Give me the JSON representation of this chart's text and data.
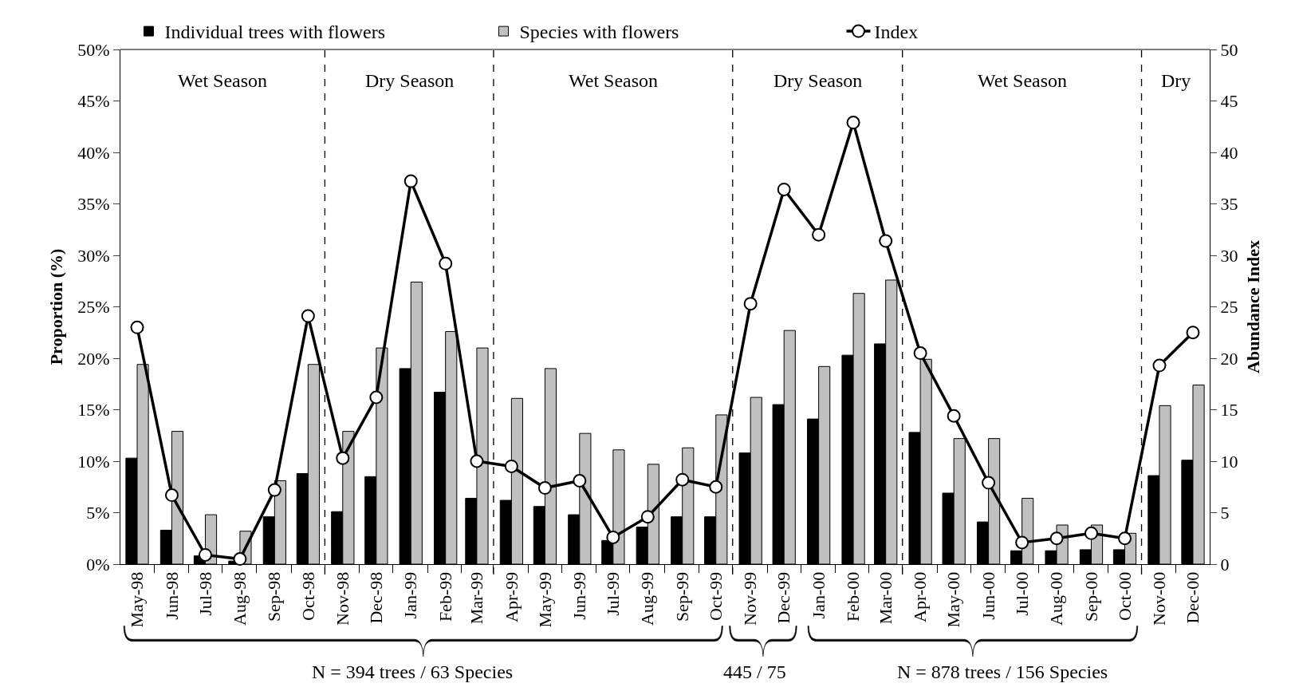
{
  "chart_data": {
    "type": "bar",
    "ylabel": "Proportion (%)",
    "y2label": "Abundance Index",
    "x": [
      "1998-05",
      "1998-06",
      "1998-07",
      "1998-08",
      "1998-09",
      "1998-10",
      "1998-11",
      "1998-12",
      "1999-01",
      "1999-02",
      "1999-03",
      "1999-04",
      "1999-05",
      "1999-06",
      "1999-07",
      "1999-08",
      "1999-09",
      "1999-10",
      "1999-11",
      "1999-12",
      "2000-01",
      "2000-02",
      "2000-03",
      "2000-04",
      "2000-05",
      "2000-06",
      "2000-07",
      "2000-08",
      "2000-09",
      "2000-10",
      "2000-11",
      "2000-12"
    ],
    "xlim": [
      "1998-04-16",
      "2000-12-16"
    ],
    "xticks": [
      {
        "value": "1998-05",
        "label": "May-98"
      },
      {
        "value": "1998-06",
        "label": "Jun-98"
      },
      {
        "value": "1998-07",
        "label": "Jul-98"
      },
      {
        "value": "1998-08",
        "label": "Aug-98"
      },
      {
        "value": "1998-09",
        "label": "Sep-98"
      },
      {
        "value": "1998-10",
        "label": "Oct-98"
      },
      {
        "value": "1998-11",
        "label": "Nov-98"
      },
      {
        "value": "1998-12",
        "label": "Dec-98"
      },
      {
        "value": "1999-01",
        "label": "Jan-99"
      },
      {
        "value": "1999-02",
        "label": "Feb-99"
      },
      {
        "value": "1999-03",
        "label": "Mar-99"
      },
      {
        "value": "1999-04",
        "label": "Apr-99"
      },
      {
        "value": "1999-05",
        "label": "May-99"
      },
      {
        "value": "1999-06",
        "label": "Jun-99"
      },
      {
        "value": "1999-07",
        "label": "Jul-99"
      },
      {
        "value": "1999-08",
        "label": "Aug-99"
      },
      {
        "value": "1999-09",
        "label": "Sep-99"
      },
      {
        "value": "1999-10",
        "label": "Oct-99"
      },
      {
        "value": "1999-11",
        "label": "Nov-99"
      },
      {
        "value": "1999-12",
        "label": "Dec-99"
      },
      {
        "value": "2000-01",
        "label": "Jan-00"
      },
      {
        "value": "2000-02",
        "label": "Feb-00"
      },
      {
        "value": "2000-03",
        "label": "Mar-00"
      },
      {
        "value": "2000-04",
        "label": "Apr-00"
      },
      {
        "value": "2000-05",
        "label": "May-00"
      },
      {
        "value": "2000-06",
        "label": "Jun-00"
      },
      {
        "value": "2000-07",
        "label": "Jul-00"
      },
      {
        "value": "2000-08",
        "label": "Aug-00"
      },
      {
        "value": "2000-09",
        "label": "Sep-00"
      },
      {
        "value": "2000-10",
        "label": "Oct-00"
      },
      {
        "value": "2000-11",
        "label": "Nov-00"
      },
      {
        "value": "2000-12",
        "label": "Dec-00"
      },
      {
        "value": "1998-05-16",
        "label": null
      },
      {
        "value": "1998-06-16",
        "label": null
      },
      {
        "value": "1998-07-16",
        "label": null
      },
      {
        "value": "1998-08-16",
        "label": null
      },
      {
        "value": "1998-09-16",
        "label": null
      },
      {
        "value": "1998-10-16",
        "label": null
      },
      {
        "value": "1998-11-16",
        "label": null
      },
      {
        "value": "1998-12-16",
        "label": null
      },
      {
        "value": "1999-01-16",
        "label": null
      },
      {
        "value": "1999-02-15",
        "label": null
      },
      {
        "value": "1999-03-16",
        "label": null
      },
      {
        "value": "1999-04-16",
        "label": null
      },
      {
        "value": "1999-05-16",
        "label": null
      },
      {
        "value": "1999-06-16",
        "label": null
      },
      {
        "value": "1999-07-16",
        "label": null
      },
      {
        "value": "1999-08-16",
        "label": null
      },
      {
        "value": "1999-09-16",
        "label": null
      },
      {
        "value": "1999-10-16",
        "label": null
      },
      {
        "value": "1999-11-16",
        "label": null
      },
      {
        "value": "1999-12-16",
        "label": null
      },
      {
        "value": "2000-01-16",
        "label": null
      },
      {
        "value": "2000-02-15",
        "label": null
      },
      {
        "value": "2000-03-16",
        "label": null
      },
      {
        "value": "2000-04-16",
        "label": null
      },
      {
        "value": "2000-05-16",
        "label": null
      },
      {
        "value": "2000-06-16",
        "label": null
      },
      {
        "value": "2000-07-16",
        "label": null
      },
      {
        "value": "2000-08-16",
        "label": null
      },
      {
        "value": "2000-09-16",
        "label": null
      },
      {
        "value": "2000-10-16",
        "label": null
      },
      {
        "value": "2000-11-16",
        "label": null
      }
    ],
    "series": [
      {
        "name": "Individual trees with flowers",
        "color": "#000000",
        "values": [
          10.3,
          3.3,
          0.8,
          0.3,
          4.6,
          8.8,
          5.1,
          8.5,
          19.0,
          16.7,
          6.4,
          6.2,
          5.6,
          4.8,
          2.3,
          3.6,
          4.6,
          4.6,
          10.8,
          15.5,
          14.1,
          20.3,
          21.4,
          12.8,
          6.9,
          4.1,
          1.3,
          1.3,
          1.4,
          1.4,
          8.6,
          10.1
        ]
      },
      {
        "name": "Species with flowers",
        "color": "#c0c0c0",
        "values": [
          19.4,
          12.9,
          4.8,
          3.2,
          8.1,
          19.4,
          12.9,
          21.0,
          27.4,
          22.6,
          21.0,
          16.1,
          19.0,
          12.7,
          11.1,
          9.7,
          11.3,
          14.5,
          16.2,
          22.7,
          19.2,
          26.3,
          27.6,
          19.9,
          12.2,
          12.2,
          6.4,
          3.8,
          3.8,
          3.0,
          15.4,
          17.4
        ]
      },
      {
        "name": "Index",
        "color": "#000000",
        "type": "line",
        "axis": "y2",
        "values": [
          23.0,
          6.7,
          0.9,
          0.5,
          7.2,
          24.1,
          10.3,
          16.2,
          37.2,
          29.2,
          10.0,
          9.5,
          7.4,
          8.1,
          2.6,
          4.6,
          8.2,
          7.5,
          25.3,
          36.4,
          32.0,
          42.9,
          31.4,
          20.5,
          14.4,
          7.9,
          2.1,
          2.5,
          3.0,
          2.5,
          19.3,
          22.5
        ]
      }
    ],
    "ylim": [
      0,
      50
    ],
    "yticks": [
      {
        "value": 0,
        "label": "0%"
      },
      {
        "value": 5,
        "label": "5%"
      },
      {
        "value": 10,
        "label": "10%"
      },
      {
        "value": 15,
        "label": "15%"
      },
      {
        "value": 20,
        "label": "20%"
      },
      {
        "value": 25,
        "label": "25%"
      },
      {
        "value": 30,
        "label": "30%"
      },
      {
        "value": 35,
        "label": "35%"
      },
      {
        "value": 40,
        "label": "40%"
      },
      {
        "value": 45,
        "label": "45%"
      },
      {
        "value": 50,
        "label": "50%"
      }
    ],
    "y2lim": [
      0,
      50
    ],
    "y2ticks": [
      0,
      5,
      10,
      15,
      20,
      25,
      30,
      35,
      40,
      45,
      50
    ],
    "ref_lines": [
      {
        "axis": "x",
        "value": "1998-10-16",
        "line_style": "dashed",
        "color": "#000000"
      },
      {
        "axis": "x",
        "value": "1999-03-16",
        "line_style": "dashed",
        "color": "#000000"
      },
      {
        "axis": "x",
        "value": "1999-10-16",
        "line_style": "dashed",
        "color": "#000000"
      },
      {
        "axis": "x",
        "value": "2000-03-16",
        "line_style": "dashed",
        "color": "#000000"
      },
      {
        "axis": "x",
        "value": "2000-10-16",
        "line_style": "dashed",
        "color": "#000000"
      }
    ],
    "annotations": [
      "Wet Season",
      "Dry Season",
      "Wet Season",
      "Dry Season",
      "Wet Season",
      "Dry",
      "N = 394 trees / 63 Species",
      "445 / 75",
      "N = 878 trees / 156 Species"
    ],
    "marker": "circle",
    "line_style": "solid",
    "legend": "top"
  }
}
